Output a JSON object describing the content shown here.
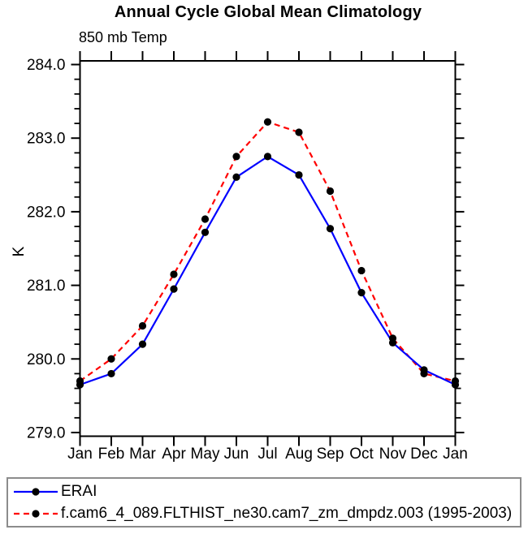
{
  "title": "Annual Cycle Global Mean Climatology",
  "subtitle": "850 mb Temp",
  "ylabel": "K",
  "chart_data": {
    "type": "line",
    "categories": [
      "Jan",
      "Feb",
      "Mar",
      "Apr",
      "May",
      "Jun",
      "Jul",
      "Aug",
      "Sep",
      "Oct",
      "Nov",
      "Dec",
      "Jan"
    ],
    "series": [
      {
        "name": "ERAI",
        "color": "#0000ff",
        "line_style": "solid",
        "marker": "filled-circle",
        "marker_color": "#000000",
        "values": [
          279.65,
          279.8,
          280.2,
          280.95,
          281.72,
          282.47,
          282.75,
          282.5,
          281.77,
          280.9,
          280.22,
          279.85,
          279.65
        ]
      },
      {
        "name": "f.cam6_4_089.FLTHIST_ne30.cam7_zm_dmpdz.003 (1995-2003)",
        "color": "#ff0000",
        "line_style": "dashed",
        "marker": "filled-circle",
        "marker_color": "#000000",
        "values": [
          279.7,
          280.0,
          280.45,
          281.15,
          281.9,
          282.75,
          283.22,
          283.08,
          282.28,
          281.2,
          280.28,
          279.8,
          279.7
        ]
      }
    ],
    "yticks": [
      284.0,
      283.0,
      282.0,
      281.0,
      280.0,
      279.0
    ],
    "ytick_labels": [
      "284.0",
      "283.0",
      "282.0",
      "281.0",
      "280.0",
      "279.0"
    ],
    "y_minor_step": 0.2,
    "ylim": [
      278.95,
      284.05
    ],
    "grid": false,
    "legend_position": "bottom"
  }
}
